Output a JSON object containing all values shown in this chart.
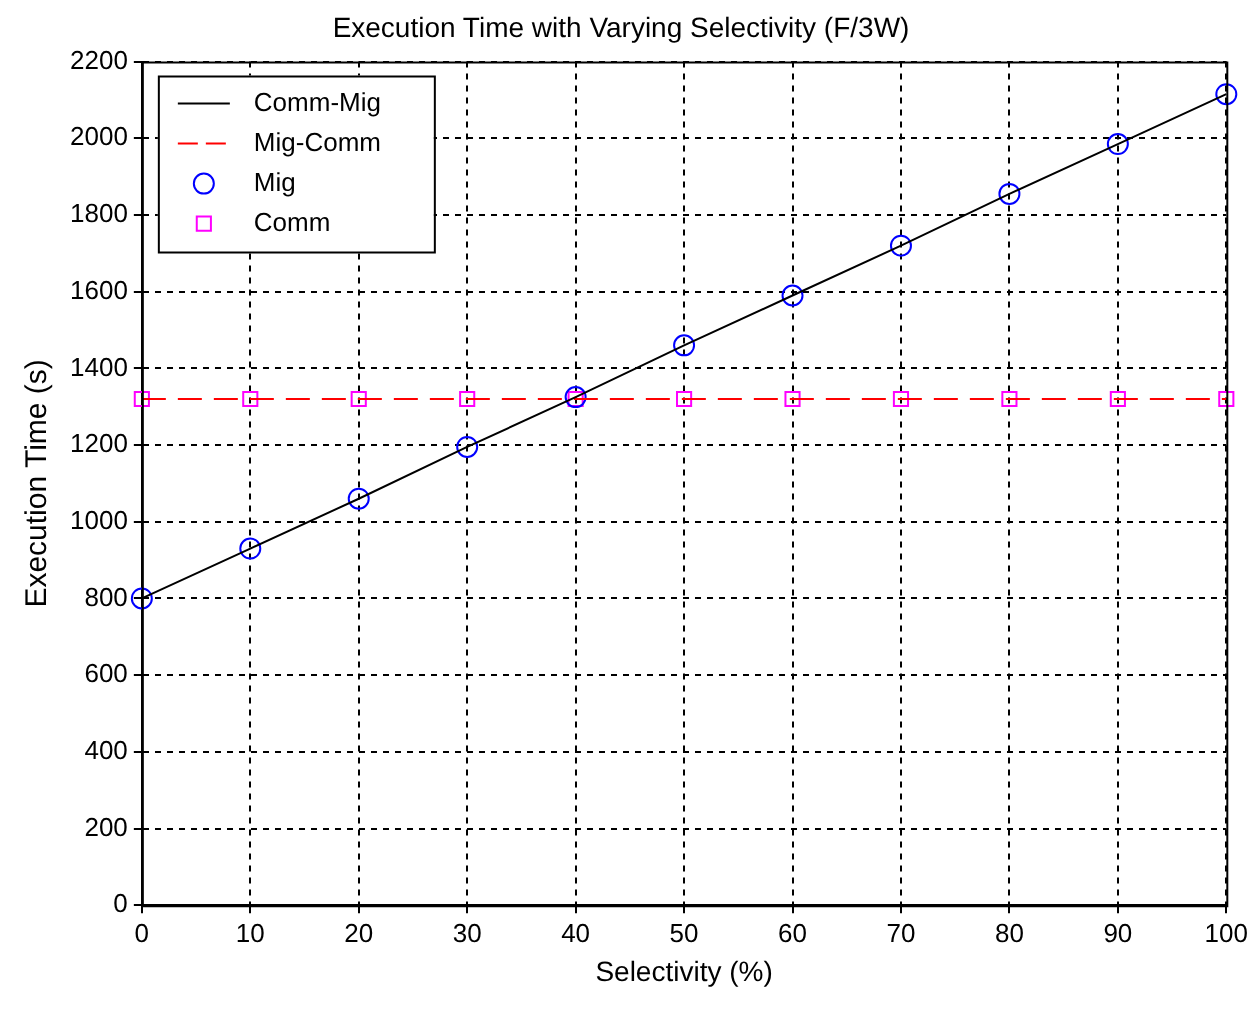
{
  "chart_data": {
    "type": "line",
    "title": "Execution Time with Varying Selectivity (F/3W)",
    "xlabel": "Selectivity (%)",
    "ylabel": "Execution Time (s)",
    "x": [
      0,
      10,
      20,
      30,
      40,
      50,
      60,
      70,
      80,
      90,
      100
    ],
    "xlim": [
      0,
      100
    ],
    "xticks": [
      0,
      10,
      20,
      30,
      40,
      50,
      60,
      70,
      80,
      90,
      100
    ],
    "ylim": [
      0,
      2200
    ],
    "yticks": [
      0,
      200,
      400,
      600,
      800,
      1000,
      1200,
      1400,
      1600,
      1800,
      2000,
      2200
    ],
    "grid": true,
    "legend": "top left",
    "series": [
      {
        "name": "Comm-Mig",
        "type": "line",
        "color": "#000000",
        "marker": "none",
        "line_style": "solid",
        "values": [
          800,
          930,
          1060,
          1195,
          1325,
          1460,
          1590,
          1720,
          1855,
          1985,
          2115
        ]
      },
      {
        "name": "Mig-Comm",
        "type": "line",
        "color": "#ff0000",
        "marker": "none",
        "line_style": "dashed",
        "values": [
          1320,
          1320,
          1320,
          1320,
          1320,
          1320,
          1320,
          1320,
          1320,
          1320,
          1320
        ]
      },
      {
        "name": "Mig",
        "type": "scatter",
        "color": "#0000ff",
        "marker": "circle",
        "values": [
          800,
          930,
          1060,
          1195,
          1325,
          1460,
          1590,
          1720,
          1855,
          1985,
          2115
        ]
      },
      {
        "name": "Comm",
        "type": "scatter",
        "color": "#ff00ff",
        "marker": "square",
        "values": [
          1320,
          1320,
          1320,
          1320,
          1320,
          1320,
          1320,
          1320,
          1320,
          1320,
          1320
        ]
      }
    ]
  }
}
